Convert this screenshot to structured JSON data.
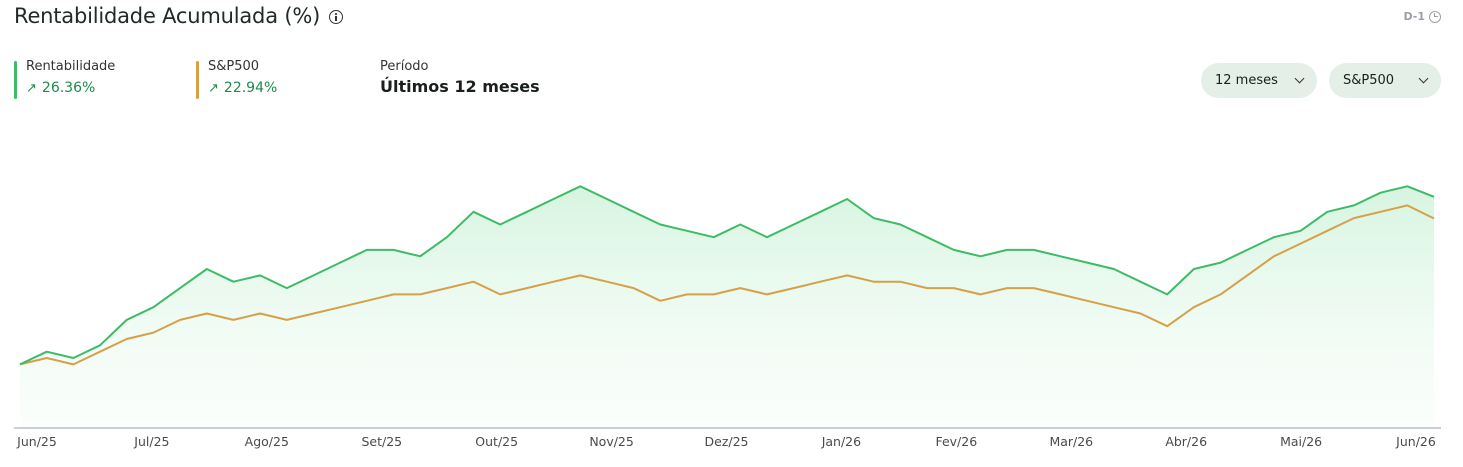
{
  "header": {
    "title": "Rentabilidade Acumulada (%)",
    "data_freshness": "D-1"
  },
  "legend": [
    {
      "label": "Rentabilidade",
      "value": "26.36%",
      "color": "#3dbb66"
    },
    {
      "label": "S&P500",
      "value": "22.94%",
      "color": "#d6a048"
    }
  ],
  "period": {
    "label": "Período",
    "value": "Últimos 12 meses"
  },
  "controls": {
    "period_select": "12 meses",
    "benchmark_select": "S&P500"
  },
  "chart_data": {
    "type": "line",
    "title": "Rentabilidade Acumulada (%)",
    "x_ticks": [
      "Jun/25",
      "Jul/25",
      "Ago/25",
      "Set/25",
      "Out/25",
      "Nov/25",
      "Dez/25",
      "Jan/26",
      "Fev/26",
      "Mar/26",
      "Abr/26",
      "Mai/26",
      "Jun/26"
    ],
    "grid": false,
    "legend_placement": "top-left",
    "y_range": [
      -10,
      40
    ],
    "area_fill_series": "Rentabilidade",
    "series": [
      {
        "name": "Rentabilidade",
        "color": "#3dbb66",
        "final_value": 26.36,
        "values": [
          0.0,
          2.0,
          1.0,
          3.0,
          7.0,
          9.0,
          12.0,
          15.0,
          13.0,
          14.0,
          12.0,
          14.0,
          16.0,
          18.0,
          18.0,
          17.0,
          20.0,
          24.0,
          22.0,
          24.0,
          26.0,
          28.0,
          26.0,
          24.0,
          22.0,
          21.0,
          20.0,
          22.0,
          20.0,
          22.0,
          24.0,
          26.0,
          23.0,
          22.0,
          20.0,
          18.0,
          17.0,
          18.0,
          18.0,
          17.0,
          16.0,
          15.0,
          13.0,
          11.0,
          15.0,
          16.0,
          18.0,
          20.0,
          21.0,
          24.0,
          25.0,
          27.0,
          28.0,
          26.36
        ]
      },
      {
        "name": "S&P500",
        "color": "#d6a048",
        "final_value": 22.94,
        "values": [
          0.0,
          1.0,
          0.0,
          2.0,
          4.0,
          5.0,
          7.0,
          8.0,
          7.0,
          8.0,
          7.0,
          8.0,
          9.0,
          10.0,
          11.0,
          11.0,
          12.0,
          13.0,
          11.0,
          12.0,
          13.0,
          14.0,
          13.0,
          12.0,
          10.0,
          11.0,
          11.0,
          12.0,
          11.0,
          12.0,
          13.0,
          14.0,
          13.0,
          13.0,
          12.0,
          12.0,
          11.0,
          12.0,
          12.0,
          11.0,
          10.0,
          9.0,
          8.0,
          6.0,
          9.0,
          11.0,
          14.0,
          17.0,
          19.0,
          21.0,
          23.0,
          24.0,
          25.0,
          22.94
        ]
      }
    ]
  }
}
